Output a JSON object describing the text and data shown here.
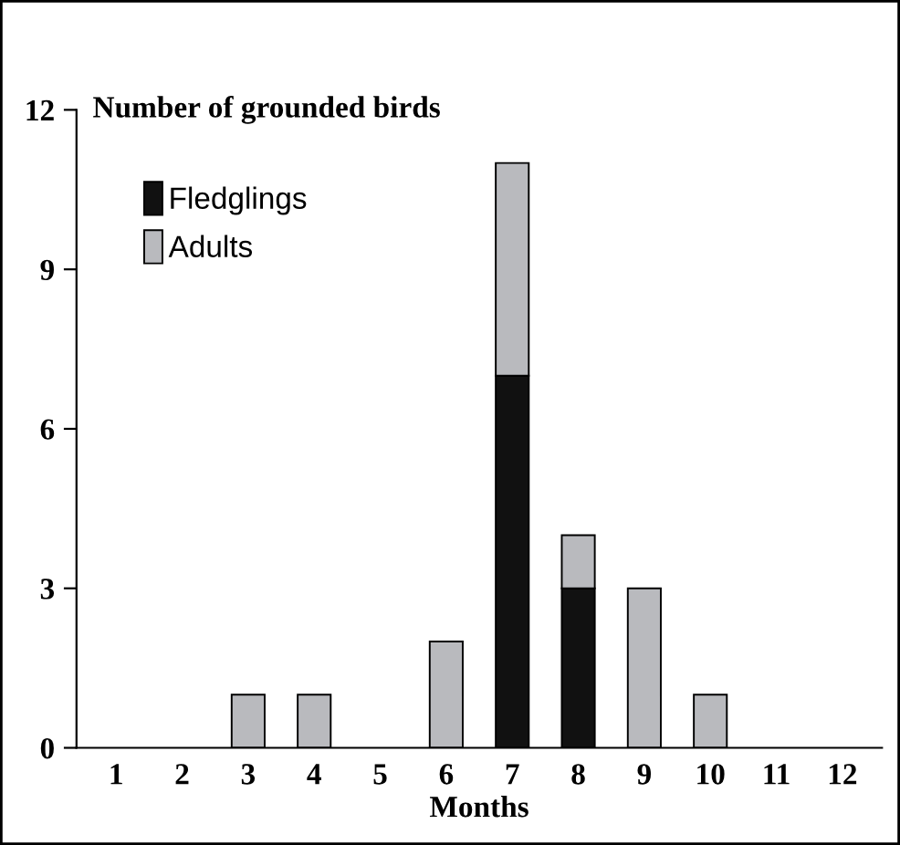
{
  "chart_data": {
    "type": "bar",
    "stacked": true,
    "ylabel": "Number of grounded birds",
    "xlabel": "Months",
    "categories": [
      "1",
      "2",
      "3",
      "4",
      "5",
      "6",
      "7",
      "8",
      "9",
      "10",
      "11",
      "12"
    ],
    "series": [
      {
        "name": "Fledglings",
        "color": "#111111",
        "values": [
          null,
          null,
          null,
          null,
          null,
          null,
          7,
          3,
          null,
          null,
          null,
          null
        ]
      },
      {
        "name": "Adults",
        "color": "#b9babe",
        "values": [
          null,
          null,
          1,
          1,
          null,
          2,
          4,
          1,
          3,
          1,
          null,
          null
        ]
      }
    ],
    "ylim": [
      0,
      12
    ],
    "yticks": [
      0,
      3,
      6,
      9,
      12
    ],
    "grid": false,
    "legend": "top left"
  }
}
